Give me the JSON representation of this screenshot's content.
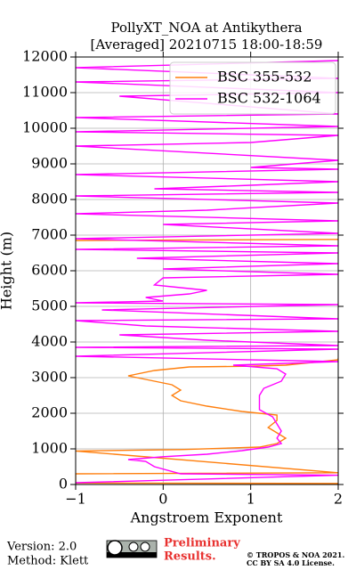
{
  "chart_data": {
    "type": "line",
    "title": "PollyXT_NOA at Antikythera",
    "subtitle": "[Averaged] 20210715 18:00-18:59",
    "x_label": "Angstroem Exponent",
    "y_label": "Height (m)",
    "xlim": [
      -1,
      2
    ],
    "xticks": [
      {
        "value": -1,
        "label": "−1"
      },
      0,
      1,
      2
    ],
    "ylim": [
      0,
      12000
    ],
    "yticks": [
      0,
      1000,
      2000,
      3000,
      4000,
      5000,
      6000,
      7000,
      8000,
      9000,
      10000,
      11000,
      12000
    ],
    "grid": true,
    "legend": "upper right",
    "series": [
      {
        "name": "BSC 355-532",
        "color": "#ff7f0e",
        "y": [
          30,
          40,
          300,
          330,
          940,
          980,
          1050,
          1150,
          1300,
          1450,
          1600,
          1800,
          1950,
          2050,
          2200,
          2350,
          2500,
          2650,
          2800,
          2950,
          3050,
          3200,
          3300,
          3320,
          3350,
          3450,
          3500,
          3550,
          null,
          6850,
          6880
        ],
        "x": [
          2,
          -1,
          -1,
          2,
          -1,
          0.2,
          1.1,
          1.3,
          1.4,
          1.3,
          1.2,
          1.3,
          1.3,
          0.9,
          0.5,
          0.2,
          0.1,
          0.2,
          0.1,
          -0.2,
          -0.4,
          -0.1,
          0.3,
          1.0,
          1.4,
          1.8,
          2,
          2,
          null,
          -1,
          2
        ]
      },
      {
        "name": "BSC 532-1064",
        "color": "#ff00ff",
        "y": [
          50,
          260,
          300,
          500,
          650,
          700,
          780,
          850,
          950,
          1050,
          1150,
          1300,
          1500,
          1700,
          1900,
          2100,
          2300,
          2500,
          2700,
          2900,
          3100,
          3250,
          3350,
          3450,
          3600,
          3800,
          3850,
          3900,
          4050,
          4200,
          4300,
          4450,
          4600,
          4650,
          4900,
          5050,
          5100,
          5150,
          5250,
          5350,
          5450,
          5500,
          5600,
          5800,
          5900,
          6050,
          6200,
          6350,
          6500,
          6600,
          6700,
          6900,
          7050,
          7300,
          7400,
          7600,
          7700,
          7900,
          8100,
          8200,
          8300,
          8400,
          8500,
          8700,
          8850,
          8900,
          9100,
          9500,
          9600,
          9800,
          9900,
          10050,
          10300,
          10400,
          10900,
          11000,
          11300,
          11400,
          11700,
          11900
        ],
        "x": [
          -1,
          2,
          0.2,
          -0.1,
          -0.2,
          -0.4,
          0.0,
          0.5,
          0.9,
          1.2,
          1.35,
          1.3,
          1.35,
          1.3,
          1.25,
          1.1,
          1.1,
          1.1,
          1.15,
          1.35,
          1.4,
          1.3,
          0.8,
          2,
          -1,
          2,
          -1,
          2,
          0.5,
          -0.5,
          2,
          -0.2,
          -1,
          2,
          -0.7,
          2,
          -1,
          0.0,
          -0.2,
          0.3,
          0.5,
          0.3,
          -0.1,
          0.0,
          2,
          0,
          2,
          -0.3,
          2,
          -1,
          2,
          -1,
          2,
          0,
          2,
          -1,
          0.5,
          2,
          -1,
          2,
          -0.1,
          1,
          2,
          -1,
          2,
          1,
          2,
          -1,
          1,
          2,
          -1,
          2,
          -1,
          2,
          -0.5,
          2,
          -1,
          2,
          -1,
          2
        ]
      }
    ]
  },
  "footer": {
    "version": "Version: 2.0",
    "method": "Method: Klett",
    "preliminary": [
      "Preliminary",
      "Results."
    ],
    "copyright": [
      "© TROPOS & NOA 2021.",
      "CC BY SA 4.0 License."
    ]
  }
}
